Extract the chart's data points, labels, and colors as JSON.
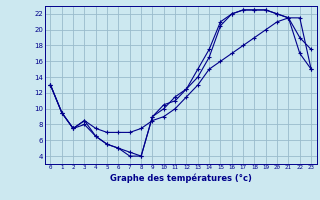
{
  "xlabel": "Graphe des températures (°c)",
  "background_color": "#cce8f0",
  "line_color": "#00008b",
  "grid_color": "#99bbcc",
  "xlim": [
    -0.5,
    23.5
  ],
  "ylim": [
    3,
    23
  ],
  "xticks": [
    0,
    1,
    2,
    3,
    4,
    5,
    6,
    7,
    8,
    9,
    10,
    11,
    12,
    13,
    14,
    15,
    16,
    17,
    18,
    19,
    20,
    21,
    22,
    23
  ],
  "yticks": [
    4,
    6,
    8,
    10,
    12,
    14,
    16,
    18,
    20,
    22
  ],
  "line1_x": [
    0,
    1,
    2,
    3,
    4,
    5,
    6,
    7,
    8,
    9,
    10,
    11,
    12,
    13,
    14,
    15,
    16,
    17,
    18,
    19,
    20,
    21,
    22,
    23
  ],
  "line1_y": [
    13,
    9.5,
    7.5,
    8.5,
    6.5,
    5.5,
    5,
    4.5,
    4,
    9,
    10.5,
    11,
    12.5,
    15,
    17.5,
    21,
    22,
    22.5,
    22.5,
    22.5,
    22,
    21.5,
    17,
    15
  ],
  "line2_x": [
    0,
    1,
    2,
    3,
    4,
    5,
    6,
    7,
    8,
    9,
    10,
    11,
    12,
    13,
    14,
    15,
    16,
    17,
    18,
    19,
    20,
    21,
    22,
    23
  ],
  "line2_y": [
    13,
    9.5,
    7.5,
    8.5,
    7.5,
    7,
    7,
    7,
    7.5,
    8.5,
    9,
    10,
    11.5,
    13,
    15,
    16,
    17,
    18,
    19,
    20,
    21,
    21.5,
    21.5,
    15
  ],
  "line3_x": [
    0,
    1,
    2,
    3,
    4,
    5,
    6,
    7,
    8,
    9,
    10,
    11,
    12,
    13,
    14,
    15,
    16,
    17,
    18,
    19,
    20,
    21,
    22,
    23
  ],
  "line3_y": [
    13,
    9.5,
    7.5,
    8,
    6.5,
    5.5,
    5,
    4,
    4,
    9,
    10,
    11.5,
    12.5,
    14,
    16.5,
    20.5,
    22,
    22.5,
    22.5,
    22.5,
    22,
    21.5,
    19,
    17.5
  ]
}
